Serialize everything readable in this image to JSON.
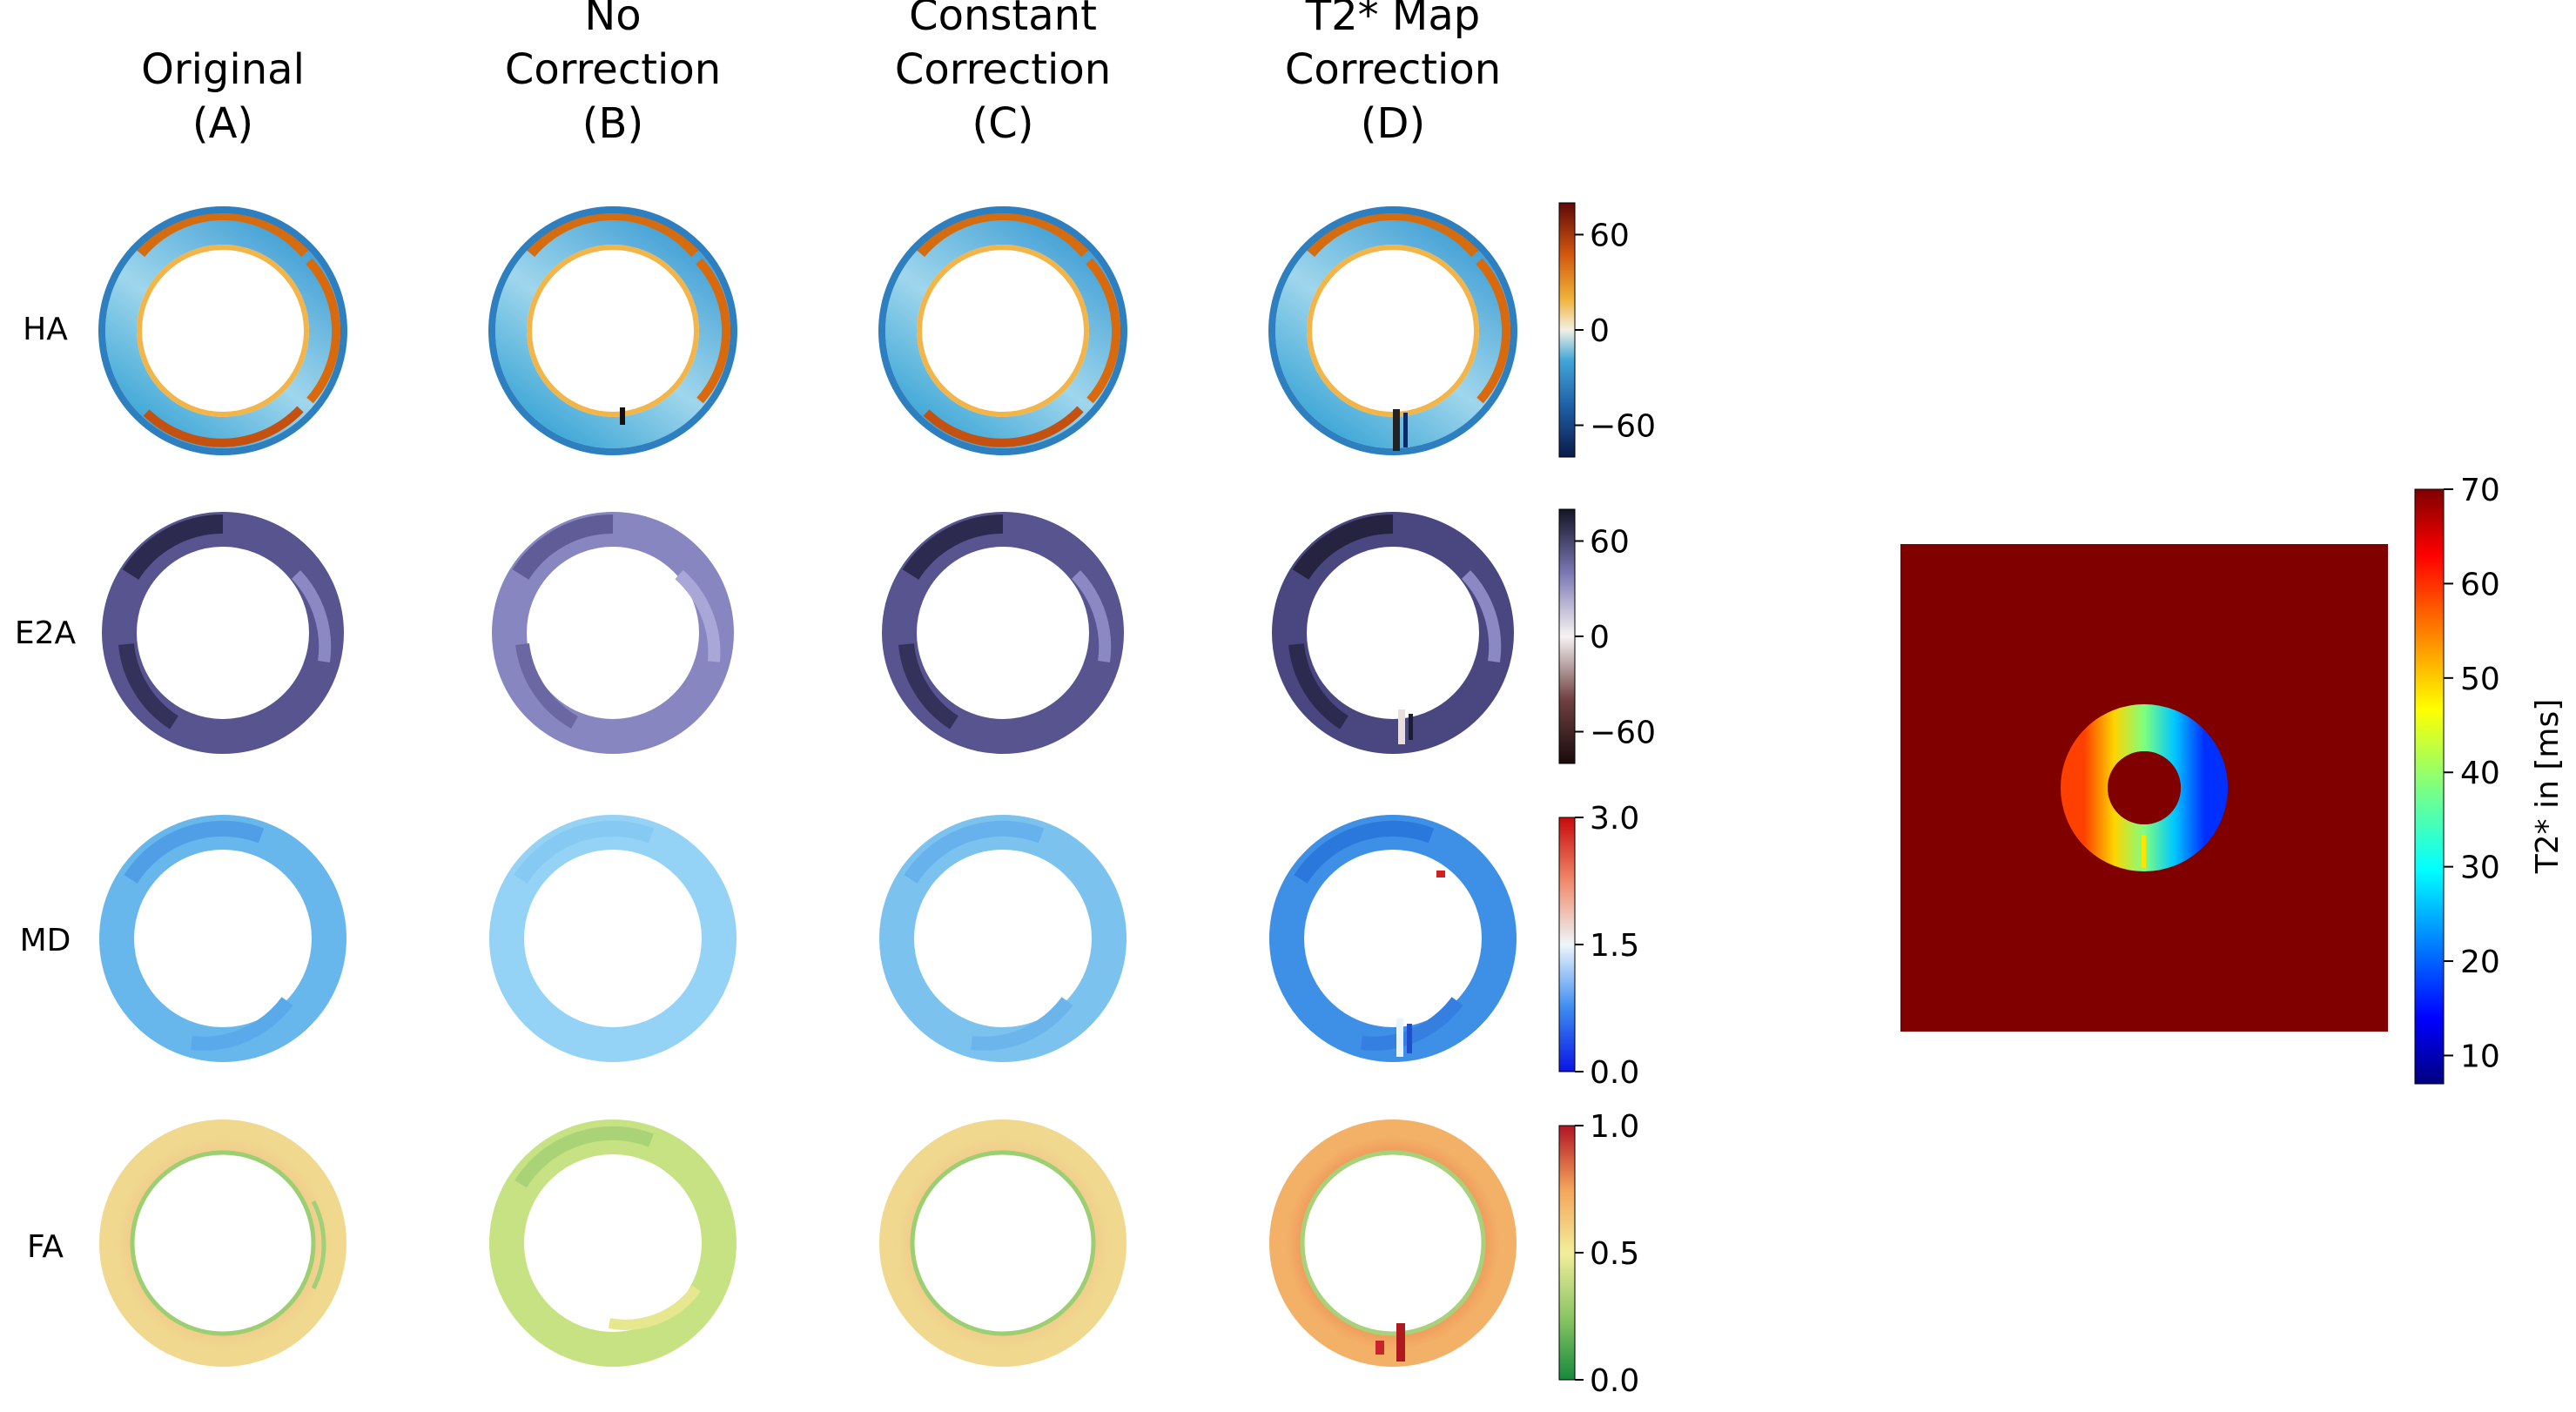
{
  "columns": [
    {
      "lines": [
        "Original",
        "(A)"
      ]
    },
    {
      "lines": [
        "No",
        "Correction",
        "(B)"
      ]
    },
    {
      "lines": [
        "Constant",
        "Correction",
        "(C)"
      ]
    },
    {
      "lines": [
        "T2* Map",
        "Correction",
        "(D)"
      ]
    }
  ],
  "rows": [
    {
      "label": "HA",
      "colormap": "jet-diverging",
      "ticks": [
        "60",
        "0",
        "−60"
      ],
      "tick_values": [
        60,
        0,
        -60
      ],
      "range": [
        -80,
        80
      ]
    },
    {
      "label": "E2A",
      "colormap": "purple-diverging",
      "ticks": [
        "60",
        "0",
        "−60"
      ],
      "tick_values": [
        60,
        0,
        -60
      ],
      "range": [
        -80,
        80
      ]
    },
    {
      "label": "MD",
      "colormap": "blue-white-red",
      "ticks": [
        "3.0",
        "1.5",
        "0.0"
      ],
      "tick_values": [
        3.0,
        1.5,
        0.0
      ],
      "range": [
        0,
        3
      ]
    },
    {
      "label": "FA",
      "colormap": "green-yellow-red",
      "ticks": [
        "1.0",
        "0.5",
        "0.0"
      ],
      "tick_values": [
        1.0,
        0.5,
        0.0
      ],
      "range": [
        0,
        1
      ]
    }
  ],
  "t2star_panel": {
    "background_color": "#800000",
    "colorbar_label": "T2* in [ms]",
    "ticks": [
      "70",
      "60",
      "50",
      "40",
      "30",
      "20",
      "10"
    ],
    "tick_values": [
      70,
      60,
      50,
      40,
      30,
      20,
      10
    ],
    "range": [
      7,
      70
    ]
  }
}
